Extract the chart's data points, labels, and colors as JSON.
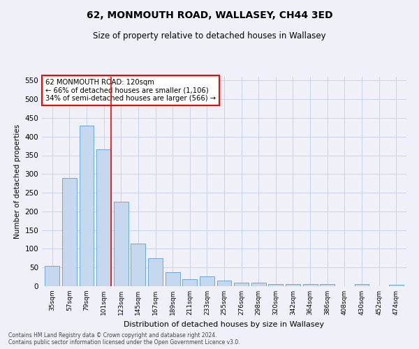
{
  "title1": "62, MONMOUTH ROAD, WALLASEY, CH44 3ED",
  "title2": "Size of property relative to detached houses in Wallasey",
  "xlabel": "Distribution of detached houses by size in Wallasey",
  "ylabel": "Number of detached properties",
  "categories": [
    "35sqm",
    "57sqm",
    "79sqm",
    "101sqm",
    "123sqm",
    "145sqm",
    "167sqm",
    "189sqm",
    "211sqm",
    "233sqm",
    "255sqm",
    "276sqm",
    "298sqm",
    "320sqm",
    "342sqm",
    "364sqm",
    "386sqm",
    "408sqm",
    "430sqm",
    "452sqm",
    "474sqm"
  ],
  "values": [
    55,
    290,
    430,
    365,
    225,
    113,
    75,
    38,
    18,
    27,
    15,
    9,
    9,
    5,
    5,
    6,
    6,
    0,
    5,
    0,
    3
  ],
  "bar_color": "#c5d8ed",
  "bar_edge_color": "#5a9ed6",
  "red_line_index": 3,
  "annotation_title": "62 MONMOUTH ROAD: 120sqm",
  "annotation_line1": "← 66% of detached houses are smaller (1,106)",
  "annotation_line2": "34% of semi-detached houses are larger (566) →",
  "annotation_box_color": "white",
  "annotation_box_edge": "red",
  "footer1": "Contains HM Land Registry data © Crown copyright and database right 2024.",
  "footer2": "Contains public sector information licensed under the Open Government Licence v3.0.",
  "ylim": [
    0,
    560
  ],
  "yticks": [
    0,
    50,
    100,
    150,
    200,
    250,
    300,
    350,
    400,
    450,
    500,
    550
  ],
  "background_color": "#f0f0f8",
  "grid_color": "#c8d4e8"
}
